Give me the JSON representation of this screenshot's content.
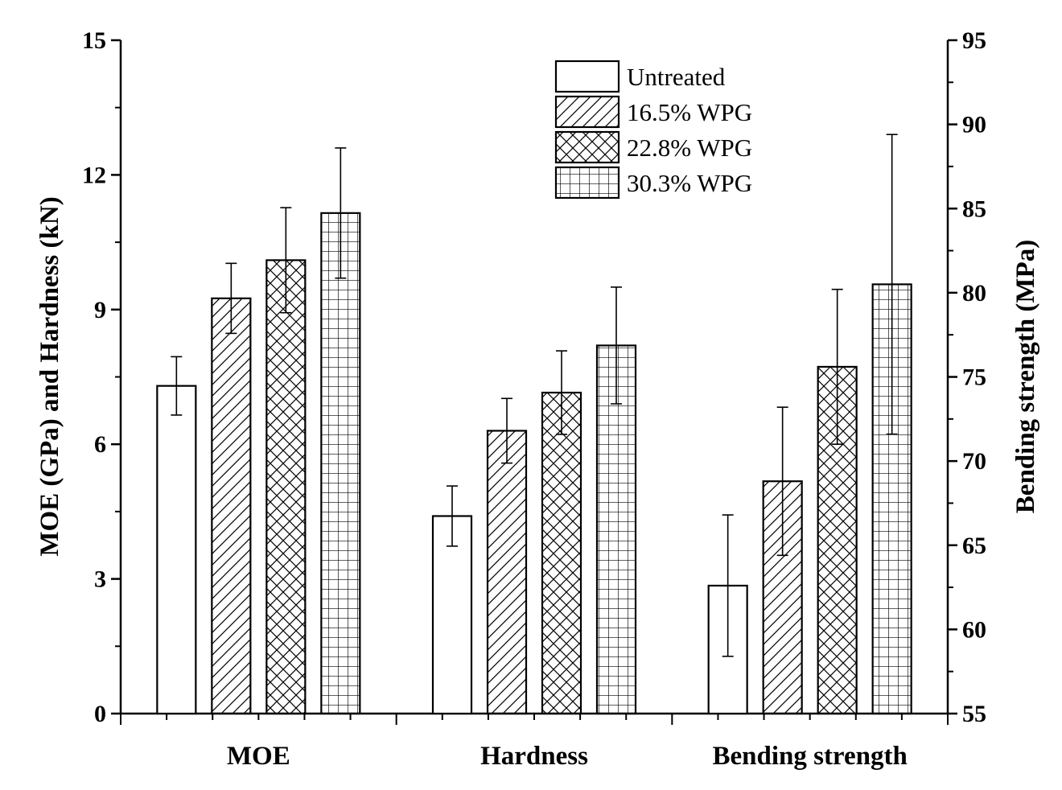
{
  "chart_data": {
    "type": "bar",
    "categories": [
      "MOE",
      "Hardness",
      "Bending strength"
    ],
    "ylabel": "MOE (GPa) and Hardness (kN)",
    "y2label": "Bending strength (MPa)",
    "ylim": [
      0,
      15
    ],
    "y2lim": [
      55,
      95
    ],
    "yticks": [
      "0",
      "3",
      "6",
      "9",
      "12",
      "15"
    ],
    "y2ticks": [
      "55",
      "60",
      "65",
      "70",
      "75",
      "80",
      "85",
      "90",
      "95"
    ],
    "legend_position": "top-center",
    "grid": false,
    "series": [
      {
        "name": "Untreated",
        "pattern": "none",
        "values": [
          7.3,
          4.4,
          62.6
        ],
        "errors": [
          0.65,
          0.67,
          4.2
        ]
      },
      {
        "name": "16.5% WPG",
        "pattern": "diagonal",
        "values": [
          9.25,
          6.3,
          68.8
        ],
        "errors": [
          0.78,
          0.72,
          4.4
        ]
      },
      {
        "name": "22.8% WPG",
        "pattern": "crosshatch",
        "values": [
          10.1,
          7.15,
          75.6
        ],
        "errors": [
          1.17,
          0.93,
          4.6
        ]
      },
      {
        "name": "30.3% WPG",
        "pattern": "grid",
        "values": [
          11.15,
          8.2,
          80.5
        ],
        "errors": [
          1.45,
          1.3,
          8.9
        ]
      }
    ],
    "axis_for_category": [
      "left",
      "left",
      "right"
    ]
  }
}
